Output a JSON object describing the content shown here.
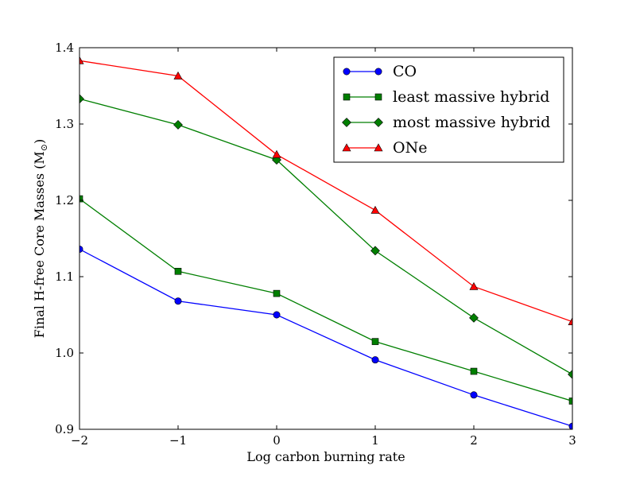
{
  "chart_data": {
    "type": "line",
    "title": "",
    "xlabel": "Log carbon burning rate",
    "ylabel_prefix": "Final H-free Core Masses (M",
    "ylabel_sub": "⊙",
    "ylabel_suffix": ")",
    "xlim": [
      -2,
      3
    ],
    "ylim": [
      0.9,
      1.4
    ],
    "x": [
      -2,
      -1,
      0,
      1,
      2,
      3
    ],
    "x_ticks": [
      -2,
      -1,
      0,
      1,
      2,
      3
    ],
    "x_tick_labels": [
      "−2",
      "−1",
      "0",
      "1",
      "2",
      "3"
    ],
    "y_ticks": [
      0.9,
      1.0,
      1.1,
      1.2,
      1.3,
      1.4
    ],
    "y_tick_labels": [
      "0.9",
      "1.0",
      "1.1",
      "1.2",
      "1.3",
      "1.4"
    ],
    "grid": false,
    "legend_position": "top-right",
    "series": [
      {
        "name": "CO",
        "color": "#0000ff",
        "marker": "circle",
        "values": [
          1.136,
          1.068,
          1.05,
          0.991,
          0.945,
          0.904
        ]
      },
      {
        "name": "least massive hybrid",
        "color": "#007f00",
        "marker": "square",
        "values": [
          1.202,
          1.107,
          1.078,
          1.015,
          0.976,
          0.937
        ]
      },
      {
        "name": "most massive hybrid",
        "color": "#007f00",
        "marker": "diamond",
        "values": [
          1.333,
          1.299,
          1.253,
          1.134,
          1.046,
          0.972
        ]
      },
      {
        "name": "ONe",
        "color": "#ff0000",
        "marker": "triangle",
        "values": [
          1.383,
          1.363,
          1.26,
          1.187,
          1.087,
          1.041
        ]
      }
    ]
  }
}
